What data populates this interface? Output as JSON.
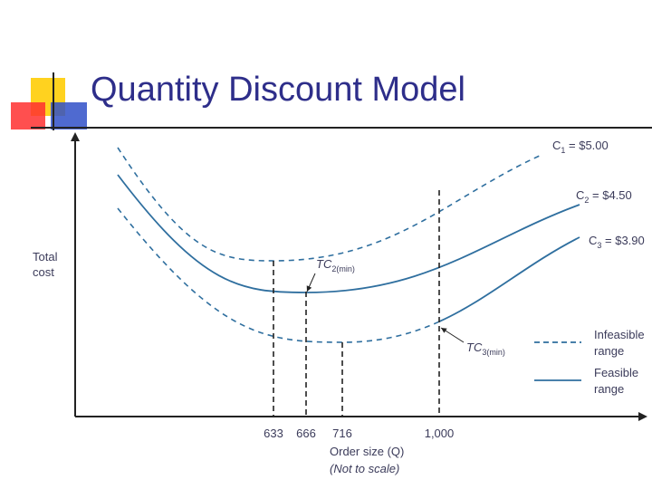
{
  "slide": {
    "title": "Quantity Discount Model"
  },
  "chart_data": {
    "type": "line",
    "title": "Quantity Discount Model",
    "ylabel_lines": [
      "Total",
      "cost"
    ],
    "xlabel": "Order size (Q)",
    "xnote": "(Not to scale)",
    "x_ticks": [
      "633",
      "666",
      "716",
      "1,000"
    ],
    "series": [
      {
        "name": "C1 = $5.00",
        "sym": "C",
        "sub": "1",
        "price": "= $5.00",
        "style": "dashed",
        "min_at": "633"
      },
      {
        "name": "C2 = $4.50",
        "sym": "C",
        "sub": "2",
        "price": "= $4.50",
        "style": "solid",
        "min_at": "666",
        "feasible_from": "666",
        "feasible_to": "1,000"
      },
      {
        "name": "C3 = $3.90",
        "sym": "C",
        "sub": "3",
        "price": "= $3.90",
        "style": "dashed",
        "min_at": "716",
        "feasible_from": "1,000"
      }
    ],
    "annotations": [
      {
        "main": "TC",
        "sub": "2(min)",
        "at": "666"
      },
      {
        "main": "TC",
        "sub": "3(min)",
        "at": "1,000"
      }
    ],
    "legend": [
      {
        "style": "dashed",
        "lines": [
          "Infeasible",
          "range"
        ]
      },
      {
        "style": "solid",
        "lines": [
          "Feasible",
          "range"
        ]
      }
    ],
    "colors": {
      "curve": "#2f6f9f",
      "axis": "#222222",
      "title": "#2e2e8a",
      "text": "#3b3b5a"
    }
  }
}
